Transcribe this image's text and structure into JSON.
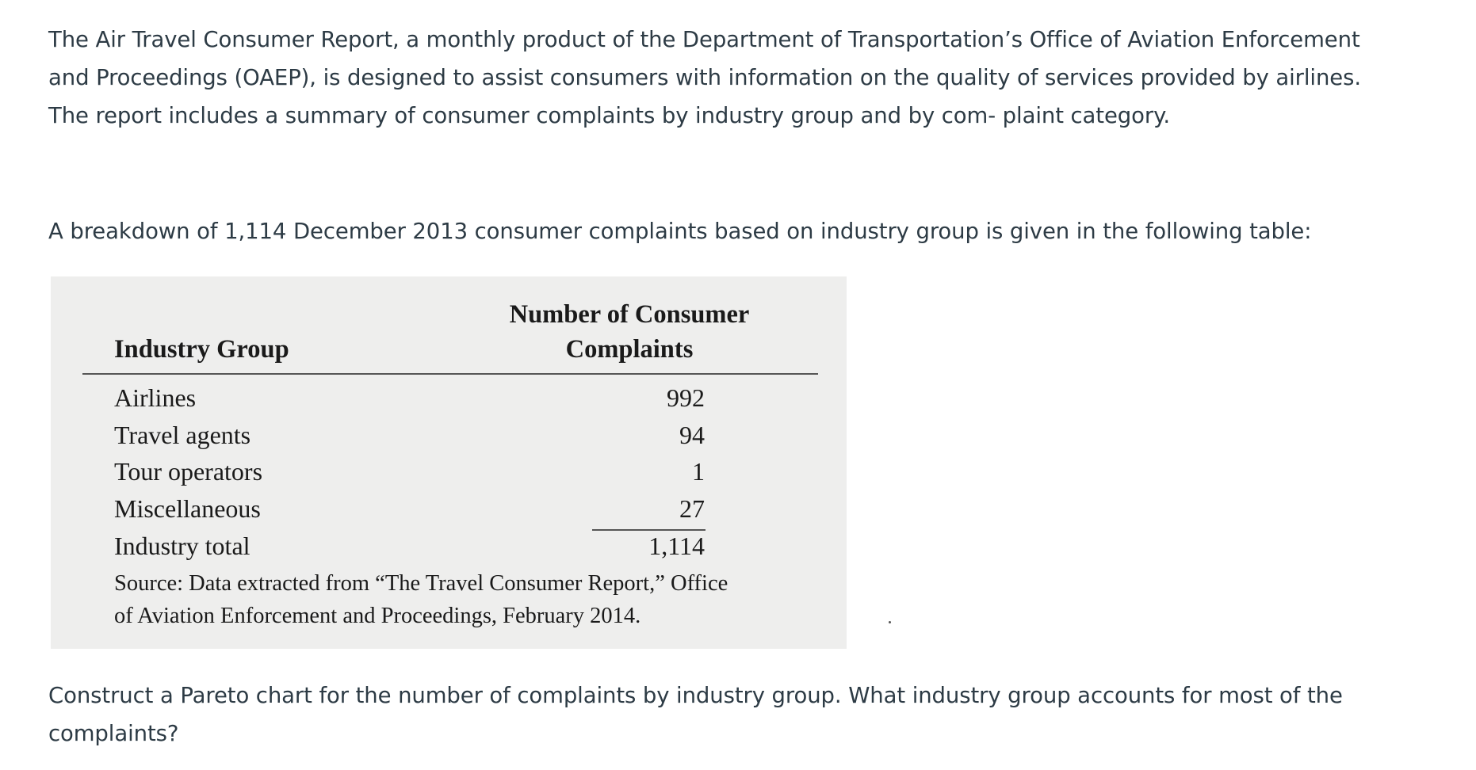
{
  "intro": {
    "line1": "The Air Travel Consumer Report, a monthly product of the Department of Transportation’s Office of Aviation Enforcement",
    "line2": "and Proceedings (OAEP), is designed to assist consumers with information on the quality of services provided by airlines.",
    "line3": "The report includes a summary of consumer complaints by industry group and by com- plaint category."
  },
  "breakdown_text": "A breakdown of 1,114 December 2013 consumer complaints based on industry group is given in the following table:",
  "table": {
    "header_group": "Industry Group",
    "header_num_line1": "Number of Consumer",
    "header_num_line2": "Complaints",
    "rows": [
      {
        "label": "Airlines",
        "value": "992"
      },
      {
        "label": "Travel agents",
        "value": "94"
      },
      {
        "label": "Tour operators",
        "value": "1"
      },
      {
        "label": "Miscellaneous",
        "value": "27"
      },
      {
        "label": "Industry total",
        "value": "1,114"
      }
    ],
    "source_line1": "Source: Data extracted from “The Travel Consumer Report,” Office",
    "source_line2": "of Aviation Enforcement and Proceedings, February 2014."
  },
  "question": {
    "line1": "Construct a Pareto chart for the number of complaints by industry group. What industry group accounts for most of the",
    "line2": "complaints?"
  }
}
